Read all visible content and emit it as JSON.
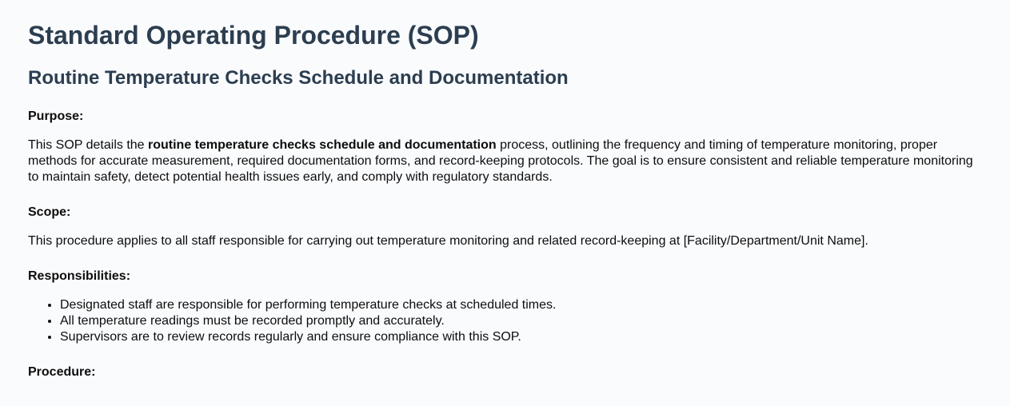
{
  "theme": {
    "background_color": "#fafbfd",
    "heading_color": "#2c3e50",
    "text_color": "#0d0d0d"
  },
  "document": {
    "title": "Standard Operating Procedure (SOP)",
    "subtitle": "Routine Temperature Checks Schedule and Documentation",
    "sections": [
      {
        "label": "Purpose:",
        "type": "paragraph",
        "text_before": "This SOP details the ",
        "bold_text": "routine temperature checks schedule and documentation",
        "text_after": " process, outlining the frequency and timing of temperature monitoring, proper methods for accurate measurement, required documentation forms, and record-keeping protocols. The goal is to ensure consistent and reliable temperature monitoring to maintain safety, detect potential health issues early, and comply with regulatory standards."
      },
      {
        "label": "Scope:",
        "type": "paragraph",
        "text": "This procedure applies to all staff responsible for carrying out temperature monitoring and related record-keeping at [Facility/Department/Unit Name]."
      },
      {
        "label": "Responsibilities:",
        "type": "list",
        "items": [
          "Designated staff are responsible for performing temperature checks at scheduled times.",
          "All temperature readings must be recorded promptly and accurately.",
          "Supervisors are to review records regularly and ensure compliance with this SOP."
        ]
      },
      {
        "label": "Procedure:",
        "type": "label-only"
      }
    ]
  }
}
